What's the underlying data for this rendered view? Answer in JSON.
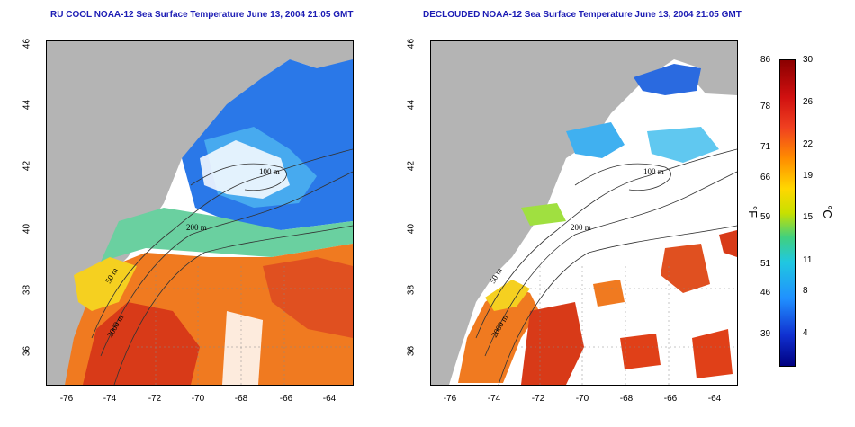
{
  "titles": {
    "left": "RU COOL NOAA-12 Sea Surface Temperature June 13, 2004 21:05 GMT",
    "right": "DECLOUDED NOAA-12 Sea Surface Temperature June 13, 2004 21:05 GMT"
  },
  "axes": {
    "x_ticks": [
      "-76",
      "-74",
      "-72",
      "-70",
      "-68",
      "-66",
      "-64"
    ],
    "y_ticks": [
      "46",
      "44",
      "42",
      "40",
      "38",
      "36"
    ]
  },
  "contours": {
    "labels": [
      "50 m",
      "100 m",
      "200 m",
      "2000 m"
    ]
  },
  "colorbar": {
    "fahrenheit": [
      "86",
      "78",
      "71",
      "66",
      "59",
      "51",
      "46",
      "39"
    ],
    "celsius": [
      "30",
      "26",
      "22",
      "19",
      "15",
      "11",
      "8",
      "4"
    ],
    "unit_f": "°F",
    "unit_c": "°C"
  },
  "colors": {
    "land": "#b4b4b4",
    "title": "#1c1cb4"
  }
}
